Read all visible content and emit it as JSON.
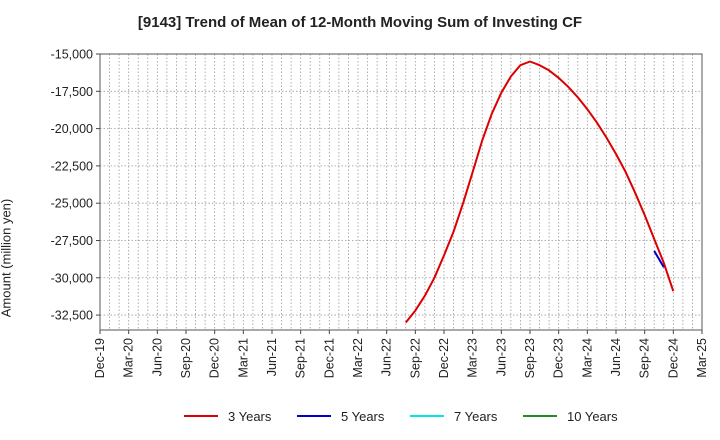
{
  "chart_data": {
    "type": "line",
    "title": "[9143]  Trend of Mean of 12-Month Moving Sum of Investing CF",
    "ylabel": "Amount (million yen)",
    "xlabel": "",
    "ylim": [
      -33500,
      -15000
    ],
    "yticks": [
      -15000,
      -17500,
      -20000,
      -22500,
      -25000,
      -27500,
      -30000,
      -32500
    ],
    "ytick_labels": [
      "-15,000",
      "-17,500",
      "-20,000",
      "-22,500",
      "-25,000",
      "-27,500",
      "-30,000",
      "-32,500"
    ],
    "xticks": [
      "Dec-19",
      "Mar-20",
      "Jun-20",
      "Sep-20",
      "Dec-20",
      "Mar-21",
      "Jun-21",
      "Sep-21",
      "Dec-21",
      "Mar-22",
      "Jun-22",
      "Sep-22",
      "Dec-22",
      "Mar-23",
      "Jun-23",
      "Sep-23",
      "Dec-23",
      "Mar-24",
      "Jun-24",
      "Sep-24",
      "Dec-24",
      "Mar-25"
    ],
    "grid": true,
    "legend_position": "bottom",
    "series": [
      {
        "name": "3 Years",
        "color": "#dd0000",
        "points": [
          [
            "Aug-22",
            -33000
          ],
          [
            "Sep-22",
            -32200
          ],
          [
            "Oct-22",
            -31200
          ],
          [
            "Nov-22",
            -30000
          ],
          [
            "Dec-22",
            -28500
          ],
          [
            "Jan-23",
            -26900
          ],
          [
            "Feb-23",
            -25000
          ],
          [
            "Mar-23",
            -22900
          ],
          [
            "Apr-23",
            -20800
          ],
          [
            "May-23",
            -19000
          ],
          [
            "Jun-23",
            -17600
          ],
          [
            "Jul-23",
            -16500
          ],
          [
            "Aug-23",
            -15750
          ],
          [
            "Sep-23",
            -15500
          ],
          [
            "Oct-23",
            -15750
          ],
          [
            "Nov-23",
            -16100
          ],
          [
            "Dec-23",
            -16600
          ],
          [
            "Jan-24",
            -17200
          ],
          [
            "Feb-24",
            -17900
          ],
          [
            "Mar-24",
            -18700
          ],
          [
            "Apr-24",
            -19600
          ],
          [
            "May-24",
            -20600
          ],
          [
            "Jun-24",
            -21700
          ],
          [
            "Jul-24",
            -22900
          ],
          [
            "Aug-24",
            -24300
          ],
          [
            "Sep-24",
            -25800
          ],
          [
            "Oct-24",
            -27400
          ],
          [
            "Nov-24",
            -29000
          ],
          [
            "Dec-24",
            -30900
          ]
        ]
      },
      {
        "name": "5 Years",
        "color": "#0000cc",
        "points": [
          [
            "Oct-24",
            -28200
          ],
          [
            "Nov-24",
            -29300
          ]
        ]
      },
      {
        "name": "7 Years",
        "color": "#00e5ee",
        "points": []
      },
      {
        "name": "10 Years",
        "color": "#228b22",
        "points": []
      }
    ]
  }
}
